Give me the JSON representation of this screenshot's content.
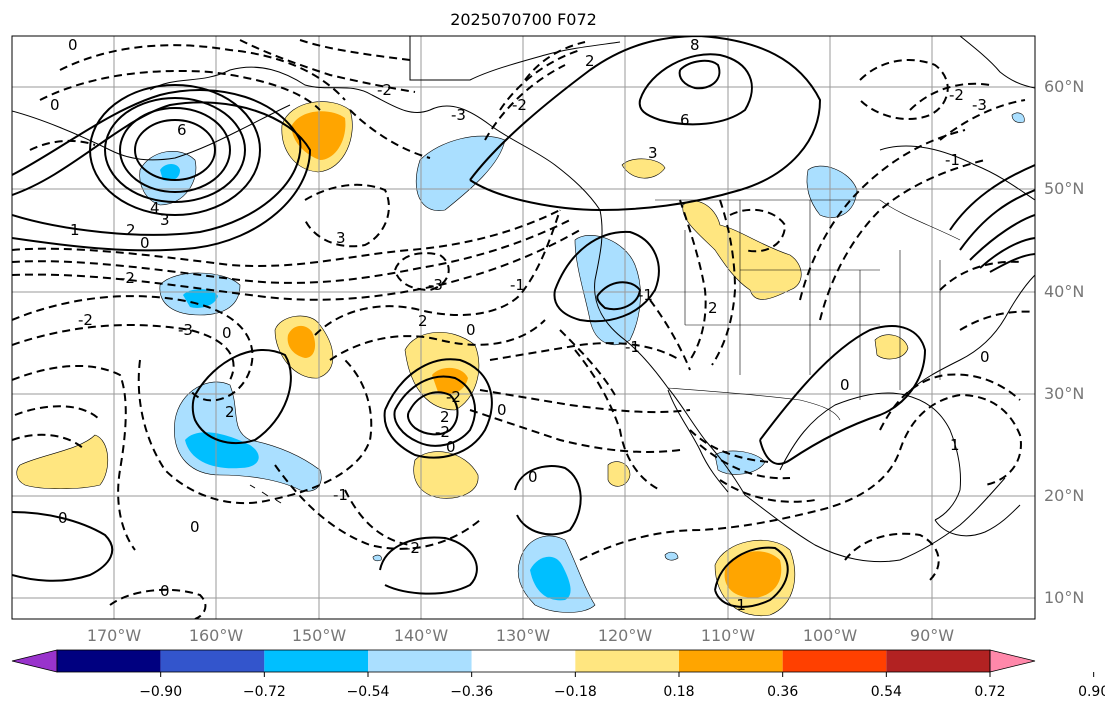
{
  "title": "2025070700 F072",
  "lat_labels": [
    "60°N",
    "50°N",
    "40°N",
    "30°N",
    "20°N",
    "10°N"
  ],
  "lon_labels": [
    "170°W",
    "160°W",
    "150°W",
    "140°W",
    "130°W",
    "120°W",
    "110°W",
    "100°W",
    "90°W"
  ],
  "contour_labels": [
    "0",
    "0",
    "6",
    "4",
    "3",
    "0",
    "1",
    "2",
    "-2",
    "3",
    "-3",
    "2",
    "0",
    "-2",
    "-3",
    "2",
    "-2",
    "3",
    "6",
    "8",
    "-2",
    "-3",
    "0",
    "2",
    "-1",
    "-2",
    "2",
    "-2",
    "0",
    "0",
    "-1",
    "0",
    "-1",
    "2",
    "-1",
    "0",
    "0",
    "-2",
    "0",
    "-1",
    "0",
    "0",
    "1",
    "-1",
    "-3",
    "-2"
  ],
  "colorbar": {
    "ticks": [
      "−0.90",
      "−0.72",
      "−0.54",
      "−0.36",
      "−0.18",
      "0.18",
      "0.36",
      "0.54",
      "0.72",
      "0.90"
    ],
    "colors": [
      "#9933cc",
      "#000080",
      "#3355cc",
      "#00bfff",
      "#aadfff",
      "#ffffff",
      "#ffe680",
      "#ffa500",
      "#ff4000",
      "#b22222",
      "#ff88aa"
    ]
  },
  "fill_colors": {
    "light_blue": "#aadfff",
    "blue": "#00bfff",
    "yellow": "#ffe680",
    "orange": "#ffa500"
  }
}
